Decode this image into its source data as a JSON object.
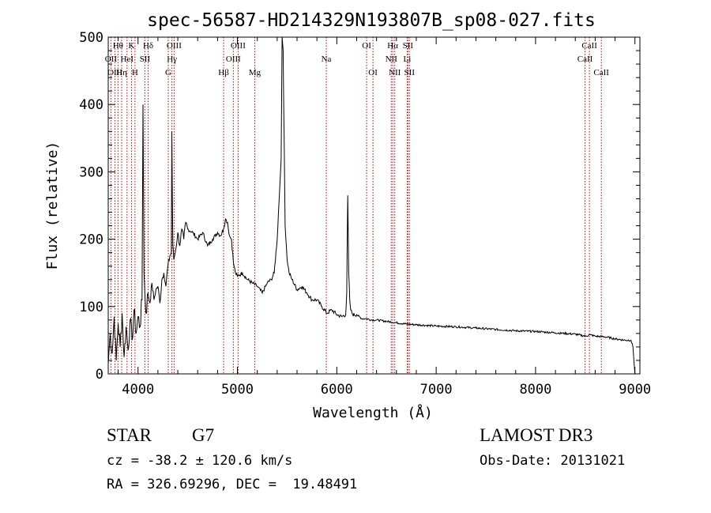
{
  "chart_data": {
    "type": "line",
    "title": "spec-56587-HD214329N193807B_sp08-027.fits",
    "xlabel": "Wavelength (Å)",
    "ylabel": "Flux (relative)",
    "xlim": [
      3700,
      9050
    ],
    "ylim": [
      0,
      500
    ],
    "xticks": [
      4000,
      5000,
      6000,
      7000,
      8000,
      9000
    ],
    "yticks": [
      0,
      100,
      200,
      300,
      400,
      500
    ],
    "grid": false,
    "line_color": "#000000",
    "marker_color": "#cc0000",
    "series": [
      {
        "x": [
          3700,
          3720,
          3740,
          3760,
          3780,
          3800,
          3820,
          3840,
          3860,
          3880,
          3900,
          3920,
          3940,
          3960,
          3980,
          4000,
          4020,
          4040,
          4050,
          4060,
          4070,
          4080,
          4100,
          4120,
          4140,
          4160,
          4180,
          4200,
          4220,
          4240,
          4260,
          4280,
          4300,
          4320,
          4335,
          4340,
          4350,
          4360,
          4380,
          4400,
          4420,
          4440,
          4460,
          4480,
          4500,
          4550,
          4600,
          4650,
          4700,
          4750,
          4800,
          4830,
          4860,
          4880,
          4900,
          4920,
          4940,
          4960,
          4980,
          5000,
          5050,
          5100,
          5150,
          5200,
          5250,
          5300,
          5340,
          5370,
          5400,
          5420,
          5440,
          5450,
          5460,
          5470,
          5480,
          5500,
          5520,
          5550,
          5600,
          5650,
          5700,
          5750,
          5800,
          5850,
          5900,
          5950,
          6000,
          6050,
          6090,
          6100,
          6110,
          6120,
          6130,
          6140,
          6160,
          6200,
          6250,
          6300,
          6350,
          6400,
          6500,
          6600,
          6700,
          6800,
          6900,
          7000,
          7200,
          7400,
          7600,
          7800,
          8000,
          8200,
          8400,
          8500,
          8550,
          8600,
          8700,
          8800,
          8900,
          8960,
          8980,
          9000
        ],
        "y": [
          15,
          60,
          30,
          85,
          20,
          75,
          40,
          90,
          25,
          70,
          35,
          80,
          50,
          95,
          60,
          85,
          70,
          110,
          400,
          150,
          115,
          90,
          120,
          105,
          135,
          110,
          125,
          130,
          105,
          140,
          150,
          130,
          160,
          175,
          180,
          360,
          190,
          170,
          185,
          210,
          190,
          215,
          200,
          225,
          215,
          210,
          200,
          210,
          190,
          200,
          210,
          205,
          215,
          230,
          225,
          205,
          200,
          165,
          150,
          145,
          150,
          140,
          135,
          130,
          120,
          135,
          140,
          150,
          200,
          260,
          320,
          500,
          480,
          350,
          220,
          170,
          150,
          140,
          125,
          130,
          120,
          110,
          110,
          100,
          90,
          95,
          88,
          85,
          88,
          120,
          265,
          150,
          110,
          95,
          88,
          88,
          82,
          82,
          80,
          80,
          78,
          76,
          74,
          73,
          72,
          71,
          70,
          68,
          66,
          64,
          63,
          61,
          59,
          56,
          58,
          56,
          55,
          52,
          50,
          50,
          40,
          0
        ]
      }
    ],
    "lines": [
      {
        "label": "Hθ",
        "x": 3798,
        "row": 0
      },
      {
        "label": "OII",
        "x": 3727,
        "row": 1
      },
      {
        "label": "OIII",
        "x": 3768,
        "row": 2
      },
      {
        "label": "Hη",
        "x": 3835,
        "row": 2
      },
      {
        "label": "HeI",
        "x": 3889,
        "row": 1
      },
      {
        "label": "K",
        "x": 3934,
        "row": 0
      },
      {
        "label": "H",
        "x": 3969,
        "row": 2
      },
      {
        "label": "SII",
        "x": 4069,
        "row": 1
      },
      {
        "label": "Hδ",
        "x": 4102,
        "row": 0
      },
      {
        "label": "G",
        "x": 4304,
        "row": 2
      },
      {
        "label": "Hγ",
        "x": 4341,
        "row": 1
      },
      {
        "label": "OIII",
        "x": 4363,
        "row": 0
      },
      {
        "label": "Hβ",
        "x": 4861,
        "row": 2
      },
      {
        "label": "OIII",
        "x": 4959,
        "row": 1
      },
      {
        "label": "OIII",
        "x": 5007,
        "row": 0
      },
      {
        "label": "Mg",
        "x": 5175,
        "row": 2
      },
      {
        "label": "Na",
        "x": 5894,
        "row": 1
      },
      {
        "label": "OI",
        "x": 6300,
        "row": 0
      },
      {
        "label": "OI",
        "x": 6364,
        "row": 2
      },
      {
        "label": "NII",
        "x": 6548,
        "row": 1
      },
      {
        "label": "Hα",
        "x": 6563,
        "row": 0
      },
      {
        "label": "NII",
        "x": 6583,
        "row": 2
      },
      {
        "label": "Li",
        "x": 6708,
        "row": 1
      },
      {
        "label": "SII",
        "x": 6716,
        "row": 0
      },
      {
        "label": "SII",
        "x": 6731,
        "row": 2
      },
      {
        "label": "CaII",
        "x": 8498,
        "row": 1
      },
      {
        "label": "CaII",
        "x": 8542,
        "row": 0
      },
      {
        "label": "CaII",
        "x": 8662,
        "row": 2
      }
    ]
  },
  "footer": {
    "object_class": "STAR",
    "subclass": "G7",
    "survey": "LAMOST DR3",
    "cz": "cz = -38.2 ± 120.6 km/s",
    "obs_date": "Obs-Date: 20131021",
    "coords": "RA = 326.69296, DEC =  19.48491"
  }
}
